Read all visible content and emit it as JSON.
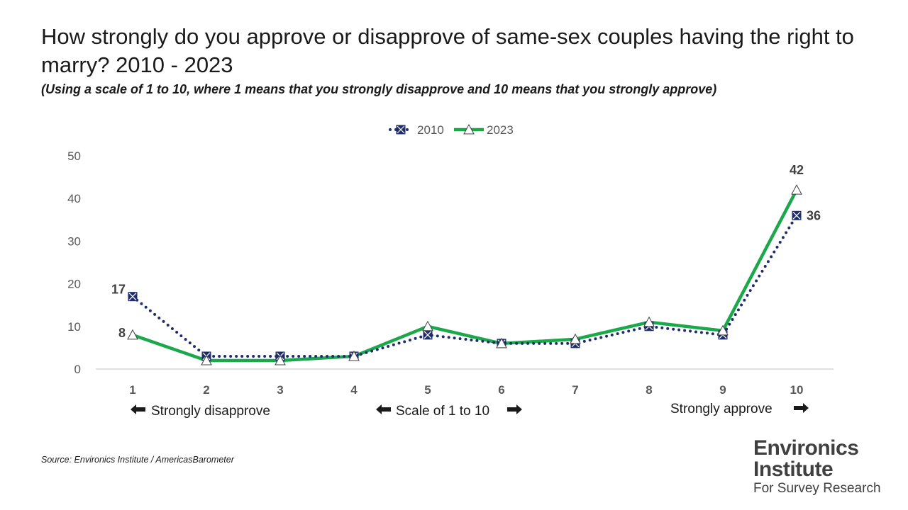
{
  "title": "How strongly do you approve or disapprove of same-sex couples having the right to marry?   2010 - 2023",
  "subtitle": "(Using a scale of 1 to 10, where 1 means that you strongly disapprove and 10 means that you strongly approve)",
  "source": "Source: Environics Institute / AmericasBarometer",
  "logo": {
    "line1": "Environics",
    "line2": "Institute",
    "line3": "For Survey Research"
  },
  "annotations": {
    "left": "Strongly disapprove",
    "middle": "Scale of 1 to 10",
    "right": "Strongly approve"
  },
  "colors": {
    "series_2010": "#1f2d6b",
    "series_2023": "#1aa84a",
    "axis": "#d9d9d9",
    "tick_text": "#595959"
  },
  "chart_data": {
    "type": "line",
    "title": "How strongly do you approve or disapprove of same-sex couples having the right to marry?   2010 - 2023",
    "xlabel": "",
    "ylabel": "",
    "categories": [
      "1",
      "2",
      "3",
      "4",
      "5",
      "6",
      "7",
      "8",
      "9",
      "10"
    ],
    "ylim": [
      0,
      50
    ],
    "yticks": [
      0,
      10,
      20,
      30,
      40,
      50
    ],
    "grid": false,
    "legend_position": "top-center",
    "series": [
      {
        "name": "2010",
        "values": [
          17,
          3,
          3,
          3,
          8,
          6,
          6,
          10,
          8,
          36
        ],
        "style": "dotted",
        "marker": "square-x",
        "labels": {
          "0": "17",
          "9": "36"
        }
      },
      {
        "name": "2023",
        "values": [
          8,
          2,
          2,
          3,
          10,
          6,
          7,
          11,
          9,
          42
        ],
        "style": "solid",
        "marker": "triangle",
        "labels": {
          "0": "8",
          "9": "42"
        }
      }
    ]
  }
}
